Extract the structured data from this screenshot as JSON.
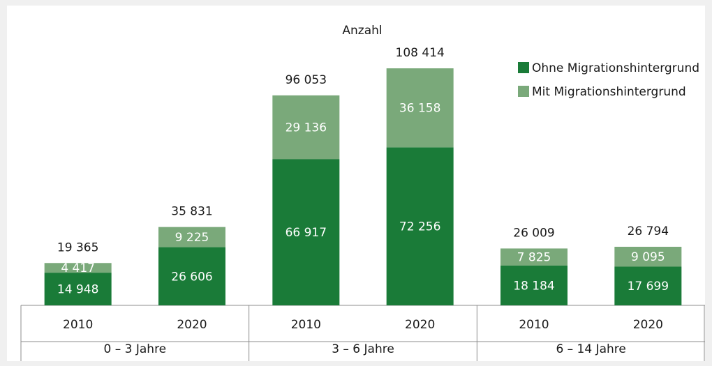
{
  "chart_data": {
    "type": "stacked-bar",
    "title": "Anzahl",
    "categories": [
      "2010",
      "2020",
      "2010",
      "2020",
      "2010",
      "2020"
    ],
    "groups": [
      "0 – 3 Jahre",
      "3 – 6 Jahre",
      "6 – 14 Jahre"
    ],
    "legend": "top-right",
    "series": [
      {
        "name": "Ohne Migrationshintergrund",
        "color": "#1a7b38",
        "values": [
          14948,
          26606,
          66917,
          72256,
          18184,
          17699
        ],
        "value_labels": [
          "14 948",
          "26 606",
          "66 917",
          "72 256",
          "18 184",
          "17 699"
        ]
      },
      {
        "name": "Mit Migrationshintergrund",
        "color": "#7aa97a",
        "values": [
          4417,
          9225,
          29136,
          36158,
          7825,
          9095
        ],
        "value_labels": [
          "4 417",
          "9 225",
          "29 136",
          "36 158",
          "7 825",
          "9 095"
        ]
      }
    ],
    "totals": {
      "values": [
        19365,
        35831,
        96053,
        108414,
        26009,
        26794
      ],
      "value_labels": [
        "19 365",
        "35 831",
        "96 053",
        "108 414",
        "26 009",
        "26 794"
      ]
    }
  }
}
